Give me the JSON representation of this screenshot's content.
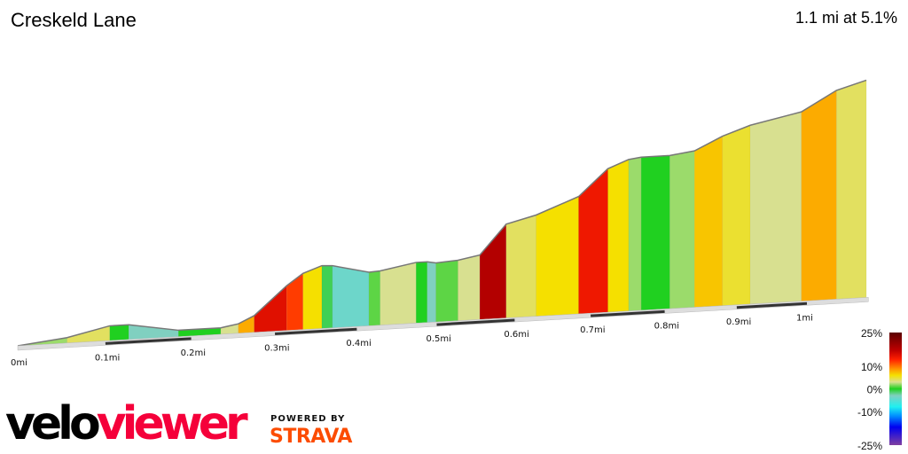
{
  "title": "Creskeld Lane",
  "summary": "1.1 mi at 5.1%",
  "chart_data": {
    "type": "area",
    "title": "Creskeld Lane",
    "x_unit": "mi",
    "xlim": [
      0,
      1.09
    ],
    "x_ticks": [
      "0mi",
      "0.1mi",
      "0.2mi",
      "0.3mi",
      "0.4mi",
      "0.5mi",
      "0.6mi",
      "0.7mi",
      "0.8mi",
      "0.9mi",
      "1mi"
    ],
    "segments_distance_gradient": [
      [
        0.0,
        0.056,
        2
      ],
      [
        0.056,
        0.105,
        4
      ],
      [
        0.105,
        0.127,
        0
      ],
      [
        0.127,
        0.185,
        -3
      ],
      [
        0.185,
        0.235,
        0
      ],
      [
        0.235,
        0.256,
        3
      ],
      [
        0.256,
        0.275,
        8
      ],
      [
        0.275,
        0.314,
        15
      ],
      [
        0.314,
        0.334,
        12
      ],
      [
        0.334,
        0.357,
        6
      ],
      [
        0.357,
        0.37,
        -1
      ],
      [
        0.37,
        0.415,
        -4
      ],
      [
        0.415,
        0.429,
        1
      ],
      [
        0.429,
        0.474,
        3
      ],
      [
        0.474,
        0.488,
        0
      ],
      [
        0.488,
        0.499,
        -3
      ],
      [
        0.499,
        0.527,
        1
      ],
      [
        0.527,
        0.555,
        3
      ],
      [
        0.555,
        0.589,
        18
      ],
      [
        0.589,
        0.628,
        4
      ],
      [
        0.628,
        0.684,
        6
      ],
      [
        0.684,
        0.723,
        14
      ],
      [
        0.723,
        0.751,
        6
      ],
      [
        0.751,
        0.768,
        2
      ],
      [
        0.768,
        0.807,
        0
      ],
      [
        0.807,
        0.841,
        2
      ],
      [
        0.841,
        0.88,
        7
      ],
      [
        0.88,
        0.919,
        5
      ],
      [
        0.919,
        0.992,
        3
      ],
      [
        0.992,
        1.043,
        8
      ],
      [
        1.043,
        1.087,
        4
      ]
    ],
    "legend": {
      "labels": [
        "25%",
        "10%",
        "0%",
        "-10%",
        "-25%"
      ],
      "values": [
        25,
        10,
        0,
        -10,
        -25
      ],
      "colors": [
        [
          "#5a0000",
          25
        ],
        [
          "#c00000",
          17
        ],
        [
          "#ff2000",
          13
        ],
        [
          "#ff9000",
          9
        ],
        [
          "#f5e000",
          6
        ],
        [
          "#d8e090",
          3
        ],
        [
          "#20d020",
          0
        ],
        [
          "#80d0c0",
          -3
        ],
        [
          "#20f0f0",
          -8
        ],
        [
          "#0090ff",
          -12
        ],
        [
          "#0000f0",
          -17
        ],
        [
          "#8040a0",
          -25
        ]
      ]
    }
  },
  "branding": {
    "velo": "velo",
    "viewer": "viewer",
    "powered_by": "POWERED BY",
    "strava": "STRAVA"
  }
}
